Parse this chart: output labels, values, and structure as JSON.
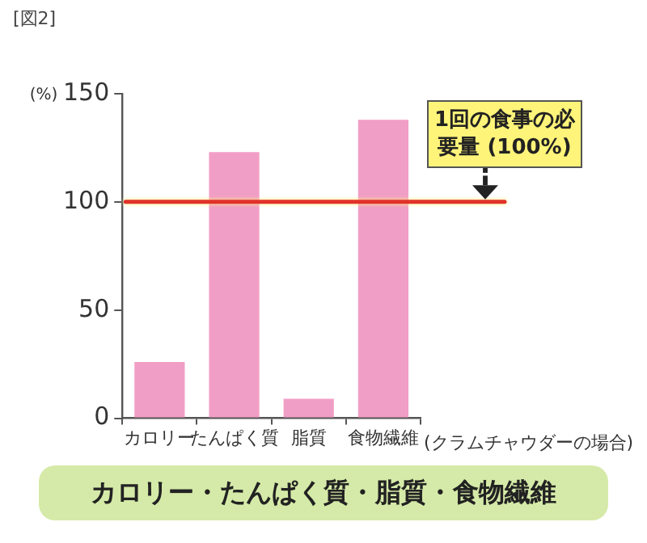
{
  "chart_data": {
    "type": "bar",
    "title": "カロリー・たんぱく質・脂質・食物繊維",
    "ylabel": "(%)",
    "categories": [
      "カロリー",
      "たんぱく質",
      "脂質",
      "食物繊維"
    ],
    "values": [
      26,
      123,
      9,
      138
    ],
    "color": "#f19ec6",
    "ylim": [
      0,
      150
    ],
    "yticks": [
      0,
      50,
      100,
      150
    ],
    "grid": false,
    "legend": false,
    "ref_lines": [
      {
        "axis": "y",
        "value": 100,
        "label": "1回の食事の必要量 (100%)",
        "color": "#e0322a"
      }
    ],
    "annotations": [
      "[図2]",
      "(クラムチャウダーの場合)"
    ]
  }
}
